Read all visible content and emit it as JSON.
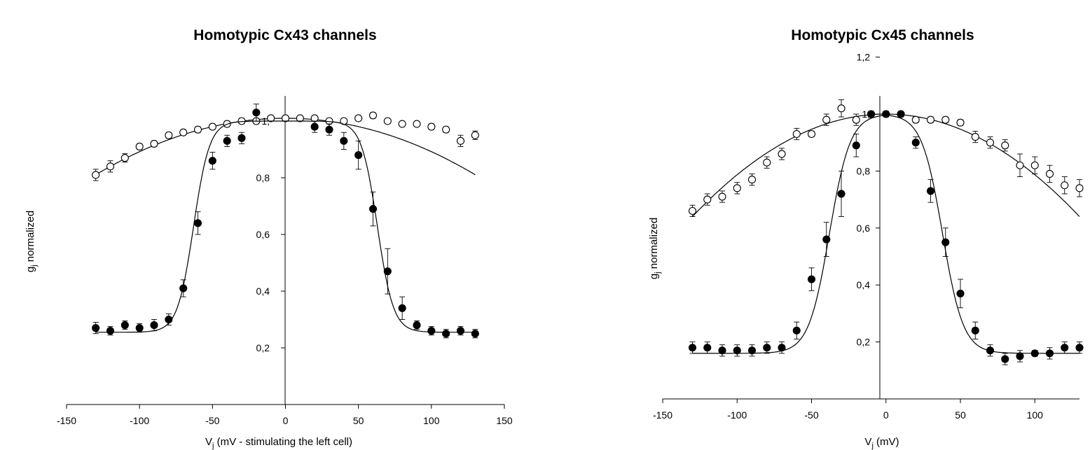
{
  "chart_data": [
    {
      "type": "scatter",
      "title": "Homotypic Cx43 channels",
      "xlabel": "V",
      "xlabel_sub": "j",
      "xlabel_rest": " (mV - stimulating the left cell)",
      "ylabel": "g",
      "ylabel_sub": "j",
      "ylabel_rest": " normalized",
      "xlim": [
        -150,
        150
      ],
      "ylim": [
        0,
        1.2
      ],
      "x_ticks": [
        -150,
        -100,
        -50,
        0,
        50,
        100,
        150
      ],
      "x_tick_labels": [
        "-150",
        "-100",
        "-50",
        "0",
        "50",
        "100",
        "150"
      ],
      "y_ticks": [
        0.2,
        0.4,
        0.6,
        0.8,
        1.0
      ],
      "y_tick_labels": [
        "0,2",
        "0,4",
        "0,6",
        "0,8",
        "1,"
      ],
      "grid": false,
      "series": [
        {
          "marker": "open-circle",
          "points": [
            {
              "x": -130,
              "y": 0.81,
              "err": 0.02
            },
            {
              "x": -120,
              "y": 0.84,
              "err": 0.02
            },
            {
              "x": -110,
              "y": 0.87,
              "err": 0.015
            },
            {
              "x": -100,
              "y": 0.91,
              "err": 0.01
            },
            {
              "x": -90,
              "y": 0.92,
              "err": 0.01
            },
            {
              "x": -80,
              "y": 0.95,
              "err": 0.01
            },
            {
              "x": -70,
              "y": 0.96,
              "err": 0.01
            },
            {
              "x": -60,
              "y": 0.97,
              "err": 0.01
            },
            {
              "x": -50,
              "y": 0.98,
              "err": 0.01
            },
            {
              "x": -40,
              "y": 0.99,
              "err": 0.01
            },
            {
              "x": -30,
              "y": 1.0,
              "err": 0.01
            },
            {
              "x": -20,
              "y": 1.0,
              "err": 0.01
            },
            {
              "x": -10,
              "y": 1.01,
              "err": 0.005
            },
            {
              "x": 0,
              "y": 1.01,
              "err": 0.005
            },
            {
              "x": 10,
              "y": 1.01,
              "err": 0.005
            },
            {
              "x": 20,
              "y": 1.01,
              "err": 0.005
            },
            {
              "x": 30,
              "y": 1.0,
              "err": 0.005
            },
            {
              "x": 40,
              "y": 1.0,
              "err": 0.005
            },
            {
              "x": 50,
              "y": 1.01,
              "err": 0.005
            },
            {
              "x": 60,
              "y": 1.02,
              "err": 0.01
            },
            {
              "x": 70,
              "y": 1.0,
              "err": 0.005
            },
            {
              "x": 80,
              "y": 0.99,
              "err": 0.005
            },
            {
              "x": 90,
              "y": 0.99,
              "err": 0.005
            },
            {
              "x": 100,
              "y": 0.98,
              "err": 0.01
            },
            {
              "x": 110,
              "y": 0.97,
              "err": 0.01
            },
            {
              "x": 120,
              "y": 0.93,
              "err": 0.02
            },
            {
              "x": 130,
              "y": 0.95,
              "err": 0.015
            }
          ],
          "fit": {
            "kind": "quad",
            "a": 1.01,
            "x0": 0,
            "b": 1.18e-05
          }
        },
        {
          "marker": "filled-circle",
          "points": [
            {
              "x": -130,
              "y": 0.27,
              "err": 0.02
            },
            {
              "x": -120,
              "y": 0.26,
              "err": 0.015
            },
            {
              "x": -110,
              "y": 0.28,
              "err": 0.015
            },
            {
              "x": -100,
              "y": 0.27,
              "err": 0.015
            },
            {
              "x": -90,
              "y": 0.28,
              "err": 0.02
            },
            {
              "x": -80,
              "y": 0.3,
              "err": 0.02
            },
            {
              "x": -70,
              "y": 0.41,
              "err": 0.03
            },
            {
              "x": -60,
              "y": 0.64,
              "err": 0.04
            },
            {
              "x": -50,
              "y": 0.86,
              "err": 0.03
            },
            {
              "x": -40,
              "y": 0.93,
              "err": 0.02
            },
            {
              "x": -30,
              "y": 0.94,
              "err": 0.02
            },
            {
              "x": -20,
              "y": 1.03,
              "err": 0.03
            },
            {
              "x": 20,
              "y": 0.98,
              "err": 0.02
            },
            {
              "x": 30,
              "y": 0.97,
              "err": 0.02
            },
            {
              "x": 40,
              "y": 0.93,
              "err": 0.03
            },
            {
              "x": 50,
              "y": 0.88,
              "err": 0.05
            },
            {
              "x": 60,
              "y": 0.69,
              "err": 0.06
            },
            {
              "x": 70,
              "y": 0.47,
              "err": 0.08
            },
            {
              "x": 80,
              "y": 0.34,
              "err": 0.04
            },
            {
              "x": 90,
              "y": 0.28,
              "err": 0.015
            },
            {
              "x": 100,
              "y": 0.26,
              "err": 0.015
            },
            {
              "x": 110,
              "y": 0.25,
              "err": 0.015
            },
            {
              "x": 120,
              "y": 0.26,
              "err": 0.015
            },
            {
              "x": 130,
              "y": 0.25,
              "err": 0.015
            }
          ],
          "fit": {
            "kind": "boltzmann",
            "gmin": 0.255,
            "gmax": 1.0,
            "v0": 63,
            "k": 5.5
          }
        }
      ]
    },
    {
      "type": "scatter",
      "title": "Homotypic Cx45 channels",
      "xlabel": "V",
      "xlabel_sub": "j",
      "xlabel_rest": " (mV)",
      "ylabel": "g",
      "ylabel_sub": "j",
      "ylabel_rest": " normalized",
      "xlim": [
        -150,
        130
      ],
      "ylim": [
        0,
        1.2
      ],
      "x_ticks": [
        -150,
        -100,
        -50,
        0,
        50,
        100
      ],
      "x_tick_labels": [
        "-150",
        "-100",
        "-50",
        "0",
        "50",
        "100"
      ],
      "y_ticks": [
        0.2,
        0.4,
        0.6,
        0.8,
        1.0,
        1.2
      ],
      "y_tick_labels": [
        "0,2",
        "0,4",
        "0,6",
        "0,8",
        "1,",
        "1,2"
      ],
      "grid": false,
      "series": [
        {
          "marker": "open-circle",
          "points": [
            {
              "x": -130,
              "y": 0.66,
              "err": 0.02
            },
            {
              "x": -120,
              "y": 0.7,
              "err": 0.02
            },
            {
              "x": -110,
              "y": 0.71,
              "err": 0.02
            },
            {
              "x": -100,
              "y": 0.74,
              "err": 0.02
            },
            {
              "x": -90,
              "y": 0.77,
              "err": 0.02
            },
            {
              "x": -80,
              "y": 0.83,
              "err": 0.02
            },
            {
              "x": -70,
              "y": 0.86,
              "err": 0.02
            },
            {
              "x": -60,
              "y": 0.93,
              "err": 0.02
            },
            {
              "x": -50,
              "y": 0.93,
              "err": 0.01
            },
            {
              "x": -40,
              "y": 0.98,
              "err": 0.02
            },
            {
              "x": -30,
              "y": 1.02,
              "err": 0.03
            },
            {
              "x": -20,
              "y": 0.98,
              "err": 0.02
            },
            {
              "x": -10,
              "y": 1.0,
              "err": 0.01
            },
            {
              "x": 0,
              "y": 1.0,
              "err": 0.01
            },
            {
              "x": 10,
              "y": 1.0,
              "err": 0.01
            },
            {
              "x": 20,
              "y": 0.98,
              "err": 0.01
            },
            {
              "x": 30,
              "y": 0.98,
              "err": 0.01
            },
            {
              "x": 40,
              "y": 0.98,
              "err": 0.01
            },
            {
              "x": 50,
              "y": 0.97,
              "err": 0.01
            },
            {
              "x": 60,
              "y": 0.92,
              "err": 0.02
            },
            {
              "x": 70,
              "y": 0.9,
              "err": 0.02
            },
            {
              "x": 80,
              "y": 0.89,
              "err": 0.02
            },
            {
              "x": 90,
              "y": 0.82,
              "err": 0.04
            },
            {
              "x": 100,
              "y": 0.82,
              "err": 0.03
            },
            {
              "x": 110,
              "y": 0.79,
              "err": 0.03
            },
            {
              "x": 120,
              "y": 0.75,
              "err": 0.03
            },
            {
              "x": 130,
              "y": 0.74,
              "err": 0.03
            }
          ],
          "fit": {
            "kind": "quad",
            "a": 1.0,
            "x0": 0,
            "b": 2.13e-05
          }
        },
        {
          "marker": "filled-circle",
          "points": [
            {
              "x": -130,
              "y": 0.18,
              "err": 0.02
            },
            {
              "x": -120,
              "y": 0.18,
              "err": 0.02
            },
            {
              "x": -110,
              "y": 0.17,
              "err": 0.02
            },
            {
              "x": -100,
              "y": 0.17,
              "err": 0.02
            },
            {
              "x": -90,
              "y": 0.17,
              "err": 0.02
            },
            {
              "x": -80,
              "y": 0.18,
              "err": 0.02
            },
            {
              "x": -70,
              "y": 0.18,
              "err": 0.02
            },
            {
              "x": -60,
              "y": 0.24,
              "err": 0.03
            },
            {
              "x": -50,
              "y": 0.42,
              "err": 0.04
            },
            {
              "x": -40,
              "y": 0.56,
              "err": 0.06
            },
            {
              "x": -30,
              "y": 0.72,
              "err": 0.08
            },
            {
              "x": -20,
              "y": 0.89,
              "err": 0.04
            },
            {
              "x": -10,
              "y": 1.0,
              "err": 0.01
            },
            {
              "x": 0,
              "y": 1.0,
              "err": 0.01
            },
            {
              "x": 10,
              "y": 1.0,
              "err": 0.01
            },
            {
              "x": 20,
              "y": 0.9,
              "err": 0.02
            },
            {
              "x": 30,
              "y": 0.73,
              "err": 0.04
            },
            {
              "x": 40,
              "y": 0.55,
              "err": 0.05
            },
            {
              "x": 50,
              "y": 0.37,
              "err": 0.05
            },
            {
              "x": 60,
              "y": 0.24,
              "err": 0.03
            },
            {
              "x": 70,
              "y": 0.17,
              "err": 0.02
            },
            {
              "x": 80,
              "y": 0.14,
              "err": 0.02
            },
            {
              "x": 90,
              "y": 0.15,
              "err": 0.02
            },
            {
              "x": 100,
              "y": 0.16,
              "err": 0.01
            },
            {
              "x": 110,
              "y": 0.16,
              "err": 0.02
            },
            {
              "x": 120,
              "y": 0.18,
              "err": 0.02
            },
            {
              "x": 130,
              "y": 0.18,
              "err": 0.02
            }
          ],
          "fit": {
            "kind": "boltzmann",
            "gmin": 0.16,
            "gmax": 1.0,
            "v0": 38,
            "k": 7
          }
        }
      ]
    }
  ]
}
